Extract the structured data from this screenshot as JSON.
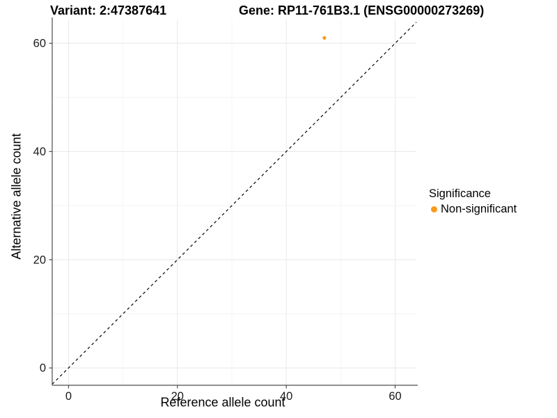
{
  "header": {
    "variant_title": "Variant: 2:47387641",
    "gene_title": "Gene: RP11-761B3.1 (ENSG00000273269)"
  },
  "axes": {
    "x_label": "Reference allele count",
    "y_label": "Alternative allele count"
  },
  "legend": {
    "title": "Significance",
    "items": [
      {
        "label": "Non-significant",
        "color": "#F89B1D"
      }
    ]
  },
  "chart_data": {
    "type": "scatter",
    "title": "Variant: 2:47387641 | Gene: RP11-761B3.1 (ENSG00000273269)",
    "xlabel": "Reference allele count",
    "ylabel": "Alternative allele count",
    "xlim": [
      -3,
      63.9
    ],
    "ylim": [
      -3.2,
      64.4
    ],
    "x_tick_values": [
      0,
      20,
      40,
      60
    ],
    "y_tick_values": [
      0,
      20,
      40,
      60
    ],
    "grid": true,
    "grid_minor": true,
    "legend_position": "right",
    "legend_title": "Significance",
    "series": [
      {
        "name": "Non-significant",
        "color": "#F89B1D",
        "points": [
          {
            "x": 47,
            "y": 61
          }
        ]
      }
    ],
    "reference_line": {
      "type": "identity",
      "style": "dashed",
      "color": "#000000"
    }
  },
  "colors": {
    "background": "#FFFFFF",
    "grid_major": "#E8E8E8",
    "grid_minor": "#F4F4F4",
    "axis_line": "#4D4D4D",
    "tick_label": "#1A1A1A",
    "point": "#F89B1D"
  }
}
